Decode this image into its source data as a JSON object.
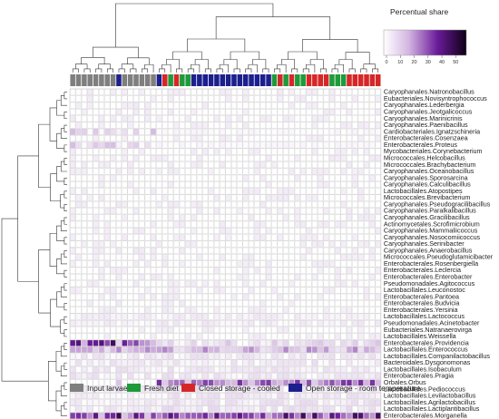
{
  "chart_data": {
    "type": "heatmap",
    "color_legend": {
      "title": "Percentual share",
      "ticks": [
        0,
        10,
        20,
        30,
        40,
        50
      ],
      "range": [
        0,
        57
      ],
      "colors": [
        "#ffffff",
        "#c9a8d8",
        "#6a1b9a",
        "#1a0026"
      ]
    },
    "groups": [
      {
        "name": "Input larvae",
        "color": "#7f7f7f"
      },
      {
        "name": "Fresh diet",
        "color": "#1f9a3a"
      },
      {
        "name": "Closed storage - cooled",
        "color": "#d62728"
      },
      {
        "name": "Open storage - room temperature",
        "color": "#1c1f8c"
      }
    ],
    "column_groups": [
      0,
      0,
      0,
      0,
      0,
      0,
      0,
      0,
      3,
      0,
      0,
      0,
      0,
      0,
      0,
      3,
      2,
      1,
      2,
      1,
      1,
      3,
      3,
      3,
      3,
      3,
      3,
      3,
      3,
      3,
      3,
      3,
      3,
      3,
      3,
      1,
      2,
      1,
      2,
      1,
      1,
      2,
      2,
      2,
      2,
      1,
      1,
      1,
      2,
      2,
      2,
      2,
      2,
      2
    ],
    "rows": [
      "Caryophanales.Natronobacillus",
      "Eubacteriales.Novisyntrophococcus",
      "Caryophanales.Lederbergia",
      "Caryophanales.Jeotgalicoccus",
      "Caryophanales.Marinicrinis",
      "Caryophanales.Paenibacillus",
      "Cardiobacteriales.Ignatzschineria",
      "Enterobacterales.Cosenzaea",
      "Enterobacterales.Proteus",
      "Mycobacteriales.Corynebacterium",
      "Micrococcales.Helcobacillus",
      "Micrococcales.Brachybacterium",
      "Caryophanales.Oceanobacillus",
      "Caryophanales.Sporosarcina",
      "Caryophanales.Calculibacillus",
      "Lactobacillales.Atopostipes",
      "Micrococcales.Brevibacterium",
      "Caryophanales.Pseudogracilibacillus",
      "Caryophanales.Paralkalibacillus",
      "Caryophanales.Gracilibacillus",
      "Actinomycetales.Scrofimicrobium",
      "Caryophanales.Mammaliicoccus",
      "Caryophanales.Nosocomiicoccus",
      "Caryophanales.Serinibacter",
      "Caryophanales.Anaerobacillus",
      "Micrococcales.Pseudoglutamicibacter",
      "Enterobacterales.Rosenbergiella",
      "Enterobacterales.Leclercia",
      "Enterobacterales.Enterobacter",
      "Pseudomonadales.Agitococcus",
      "Lactobacillales.Leuconostoc",
      "Enterobacterales.Pantoea",
      "Enterobacterales.Budvicia",
      "Enterobacterales.Yersinia",
      "Lactobacillales.Lactococcus",
      "Pseudomonadales.Acinetobacter",
      "Eubacteriales.Natranaerovirga",
      "Lactobacillales.Weissella",
      "Enterobacterales.Providencia",
      "Lactobacillales.Enterococcus",
      "Lactobacillales.Companilactobacillus",
      "Bacteroidales.Dysgonomonas",
      "Lactobacillales.Isobaculum",
      "Enterobacterales.Pragia",
      "Orbales.Orbus",
      "Lactobacillales.Pediococcus",
      "Lactobacillales.Levilactobacillus",
      "Lactobacillales.Agrilactobacillus",
      "Lactobacillales.Lactiplantibacillus",
      "Enterobacterales.Morganella"
    ]
  }
}
